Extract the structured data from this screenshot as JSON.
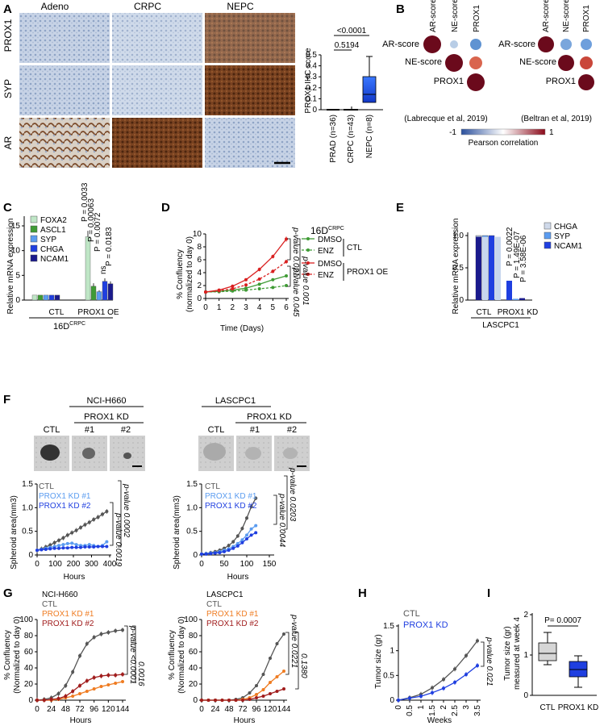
{
  "figure": {
    "panel_letters": [
      "A",
      "B",
      "C",
      "D",
      "E",
      "F",
      "G",
      "H",
      "I"
    ],
    "colors": {
      "navy": "#1a1a8c",
      "blue": "#1f3fe0",
      "lightblue": "#5b9cf0",
      "gray": "#555555",
      "green": "#3f9b35",
      "red": "#d92020",
      "orange": "#ef7c22",
      "darkred": "#a01c1c",
      "mint": "#bfe6c6",
      "ihc_brown": "#6b3a1a",
      "ihc_blue": "#b9c8de"
    }
  },
  "panel_a": {
    "col_headers": [
      "Adeno",
      "CRPC",
      "NEPC"
    ],
    "row_labels": [
      "PROX1",
      "SYP",
      "AR"
    ],
    "boxplot": {
      "ylabel": "PROX1 IHC score",
      "categories": [
        "PRAD (n=36)",
        "CRPC (n=43)",
        "NEPC (n=8)"
      ],
      "yticks": [
        "0",
        "0.1",
        "0.2",
        "0.3",
        "0.4",
        "0.5"
      ],
      "pvals": [
        "<0.0001",
        "0.5194"
      ]
    }
  },
  "panel_b": {
    "left_cols": [
      "AR-score",
      "NE-score",
      "PROX1"
    ],
    "left_rows": [
      "AR-score",
      "NE-score",
      "PROX1"
    ],
    "left_caption": "(Labrecque et al, 2019)",
    "right_cols": [
      "AR-score",
      "NE-score",
      "PROX1"
    ],
    "right_rows": [
      "AR-score",
      "NE-score",
      "PROX1"
    ],
    "right_caption": "(Beltran et al, 2019)",
    "legend_min": "-1",
    "legend_max": "1",
    "legend_label": "Pearson correlation"
  },
  "panel_c": {
    "ylabel": "Relative mRNA expression",
    "legend": [
      "FOXA2",
      "ASCL1",
      "SYP",
      "CHGA",
      "NCAM1"
    ],
    "groups": [
      "CTL",
      "PROX1 OE"
    ],
    "cell_line": "16D",
    "cell_sup": "CRPC",
    "yticks": [
      "0",
      "5",
      "10",
      "15"
    ],
    "pvals": [
      "P = 0.0033",
      "P = 0.00063",
      "P = 0.0072",
      "ns",
      "P = 0.0183"
    ]
  },
  "panel_d": {
    "title": "16D",
    "title_sup": "CRPC",
    "ylabel": "% Confluency",
    "ylabel2": "(normalized to day 0)",
    "xlabel": "Time (Days)",
    "xticks": [
      "0",
      "1",
      "2",
      "3",
      "4",
      "5",
      "6"
    ],
    "yticks": [
      "0",
      "2",
      "4",
      "6",
      "8",
      "10"
    ],
    "legend": [
      "DMSO",
      "ENZ",
      "DMSO",
      "ENZ"
    ],
    "group_labels": [
      "CTL",
      "PROX1 OE"
    ],
    "pvals": [
      "p-value 0.021",
      "p-value 0.001",
      "p-value 0.045"
    ]
  },
  "panel_e": {
    "ylabel": "Relative mRNA expression",
    "legend": [
      "CHGA",
      "SYP",
      "NCAM1"
    ],
    "groups": [
      "CTL",
      "PROX1 KD"
    ],
    "cell_line": "LASCPC1",
    "yticks": [
      "0",
      "0.5",
      "1.0"
    ],
    "pvals": [
      "P = 0.0022",
      "P = 1.49E-07",
      "P = 3.58E-06"
    ]
  },
  "panel_f": {
    "left_title": "NCI-H660",
    "right_title": "LASCPC1",
    "bracket_label": "PROX1 KD",
    "img_labels": [
      "CTL",
      "#1",
      "#2"
    ],
    "ylabel": "Spheroid area(mm3)",
    "xlabel": "Hours",
    "legend": [
      "CTL",
      "PROX1 KD #1",
      "PROX1 KD #2"
    ],
    "left_xticks": [
      "0",
      "100",
      "200",
      "300",
      "400"
    ],
    "left_yticks": [
      "0",
      "0.5",
      "1.0",
      "1.5"
    ],
    "right_xticks": [
      "0",
      "50",
      "100",
      "150"
    ],
    "right_yticks": [
      "0",
      "0.5",
      "1.0",
      "1.5"
    ],
    "left_pvals": [
      "p-value 0.0019",
      "p-value 0.0002"
    ],
    "right_pvals": [
      "p-value 0.0044",
      "p-value 0.0203"
    ]
  },
  "panel_g": {
    "left_title": "NCI-H660",
    "right_title": "LASCPC1",
    "legend": [
      "CTL",
      "PROX1 KD #1",
      "PROX1 KD #2"
    ],
    "ylabel": "% Confluency",
    "ylabel2": "(Normalized to day 0)",
    "xlabel": "Hours",
    "xticks": [
      "0",
      "24",
      "48",
      "72",
      "96",
      "120",
      "144"
    ],
    "yticks": [
      "0",
      "20",
      "40",
      "60",
      "80",
      "100"
    ],
    "left_pvals": [
      "p-value <0.0001",
      "0.0016"
    ],
    "right_pvals": [
      "p-value 0.0221",
      "0.1380"
    ]
  },
  "panel_h": {
    "legend": [
      "CTL",
      "PROX1 KD"
    ],
    "ylabel": "Tumor size (gr)",
    "xlabel": "Weeks",
    "xticks": [
      "0",
      "0.5",
      "1",
      "1.5",
      "2",
      "2.5",
      "3",
      "3.5"
    ],
    "yticks": [
      "0",
      "0.5",
      "1",
      "1.5"
    ],
    "pval": "p-value 0.021"
  },
  "panel_i": {
    "ylabel": "Tumor size (gr)",
    "ylabel2": "measured at week 4",
    "categories": [
      "CTL",
      "PROX1 KD"
    ],
    "yticks": [
      "0",
      "1",
      "2"
    ],
    "pval": "P= 0.0007"
  }
}
